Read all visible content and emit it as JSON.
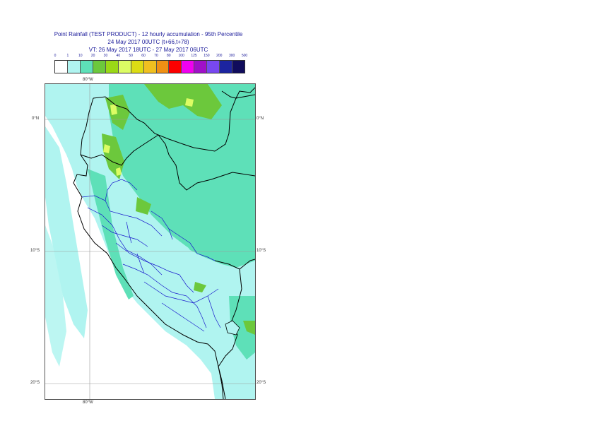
{
  "title": {
    "line1": "Point Rainfall (TEST PRODUCT) - 12 hourly accumulation - 95th Percentile",
    "line2": "24 May 2017 00UTC (t+66,t+78)",
    "line3": "VT: 26 May 2017 18UTC - 27 May 2017 06UTC"
  },
  "legend": {
    "thresholds": [
      "0",
      "1",
      "10",
      "20",
      "30",
      "40",
      "50",
      "60",
      "70",
      "80",
      "100",
      "125",
      "150",
      "200",
      "300",
      "500"
    ],
    "colors": [
      "#ffffff",
      "#b0f4f0",
      "#5ee0b8",
      "#6cc83c",
      "#9ad816",
      "#dcfc64",
      "#dcdc14",
      "#f0c020",
      "#f09014",
      "#fc0000",
      "#f000f0",
      "#a010c8",
      "#7848f0",
      "#1c24a0",
      "#100c5c"
    ]
  },
  "axes": {
    "lon_top": "80°W",
    "lon_bottom": "80°W",
    "lat_0_left": "0°N",
    "lat_0_right": "0°N",
    "lat_10_left": "10°S",
    "lat_10_right": "10°S",
    "lat_20_left": "20°S",
    "lat_20_right": "20°S"
  }
}
